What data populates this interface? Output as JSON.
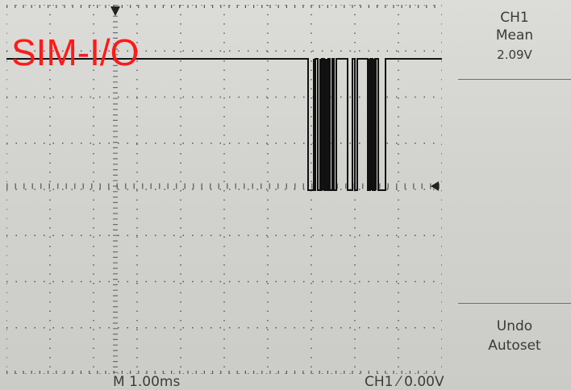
{
  "overlay": {
    "signal_label": "SIM-I/O",
    "label_color": "#ff1a1a"
  },
  "measurement": {
    "channel": "CH1",
    "type": "Mean",
    "value": "2.09V"
  },
  "undo_button": {
    "line1": "Undo",
    "line2": "Autoset"
  },
  "status": {
    "timebase": "M 1.00ms",
    "trigger": "CH1 ⁄ 0.00V"
  },
  "colors": {
    "trace": "#111111",
    "graticule": "#555555",
    "screen": "#d3d3cf"
  }
}
